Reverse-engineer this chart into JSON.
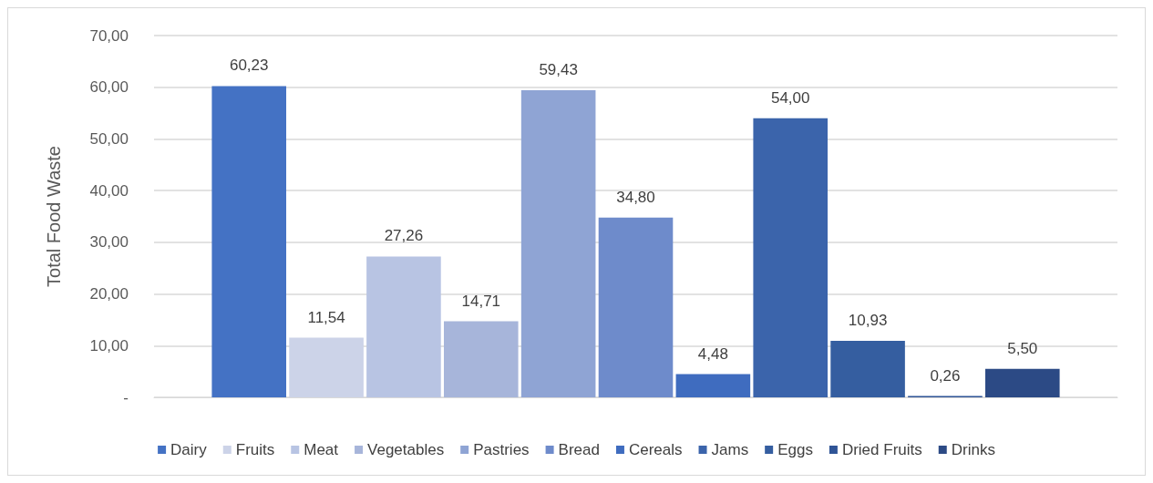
{
  "chart_data": {
    "type": "bar",
    "ylabel": "Total Food Waste",
    "categories": [
      null
    ],
    "series": [
      {
        "name": "Dairy",
        "color": "#4472c4",
        "values": [
          60.23
        ],
        "value_labels": [
          "60,23"
        ]
      },
      {
        "name": "Fruits",
        "color": "#ccd3e8",
        "values": [
          11.54
        ],
        "value_labels": [
          "11,54"
        ]
      },
      {
        "name": "Meat",
        "color": "#b8c4e3",
        "values": [
          27.26
        ],
        "value_labels": [
          "27,26"
        ]
      },
      {
        "name": "Vegetables",
        "color": "#a7b5da",
        "values": [
          14.71
        ],
        "value_labels": [
          "14,71"
        ]
      },
      {
        "name": "Pastries",
        "color": "#8fa4d4",
        "values": [
          59.43
        ],
        "value_labels": [
          "59,43"
        ]
      },
      {
        "name": "Bread",
        "color": "#6e8bcb",
        "values": [
          34.8
        ],
        "value_labels": [
          "34,80"
        ]
      },
      {
        "name": "Cereals",
        "color": "#3f6cbf",
        "values": [
          4.48
        ],
        "value_labels": [
          "4,48"
        ]
      },
      {
        "name": "Jams",
        "color": "#3b64ab",
        "values": [
          54.0
        ],
        "value_labels": [
          "54,00"
        ]
      },
      {
        "name": "Eggs",
        "color": "#355ea0",
        "values": [
          10.93
        ],
        "value_labels": [
          "10,93"
        ]
      },
      {
        "name": "Dried Fruits",
        "color": "#2f5496",
        "values": [
          0.26
        ],
        "value_labels": [
          "0,26"
        ]
      },
      {
        "name": "Drinks",
        "color": "#2c4a85",
        "values": [
          5.5
        ],
        "value_labels": [
          "5,50"
        ]
      }
    ],
    "ylim": [
      0,
      70
    ],
    "yticks": [
      {
        "value": 0,
        "label": "-"
      },
      {
        "value": 10,
        "label": "10,00"
      },
      {
        "value": 20,
        "label": "20,00"
      },
      {
        "value": 30,
        "label": "30,00"
      },
      {
        "value": 40,
        "label": "40,00"
      },
      {
        "value": 50,
        "label": "50,00"
      },
      {
        "value": 60,
        "label": "60,00"
      },
      {
        "value": 70,
        "label": "70,00"
      }
    ],
    "grid": "y",
    "legend": "bottom"
  }
}
